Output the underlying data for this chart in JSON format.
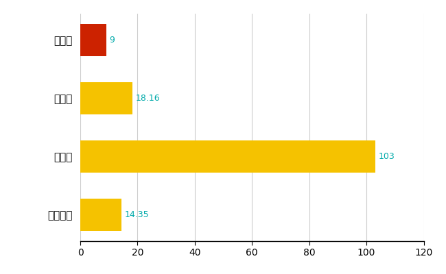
{
  "categories": [
    "能登町",
    "県平均",
    "県最大",
    "全国平均"
  ],
  "values": [
    9,
    18.16,
    103,
    14.35
  ],
  "bar_colors": [
    "#cc2200",
    "#f5c200",
    "#f5c200",
    "#f5c200"
  ],
  "label_values": [
    "9",
    "18.16",
    "103",
    "14.35"
  ],
  "xlim": [
    0,
    120
  ],
  "xticks": [
    0,
    20,
    40,
    60,
    80,
    100,
    120
  ],
  "grid_color": "#cccccc",
  "background_color": "#ffffff",
  "label_color": "#00aaaa",
  "bar_height": 0.55,
  "figsize": [
    6.5,
    4.0
  ],
  "dpi": 100
}
